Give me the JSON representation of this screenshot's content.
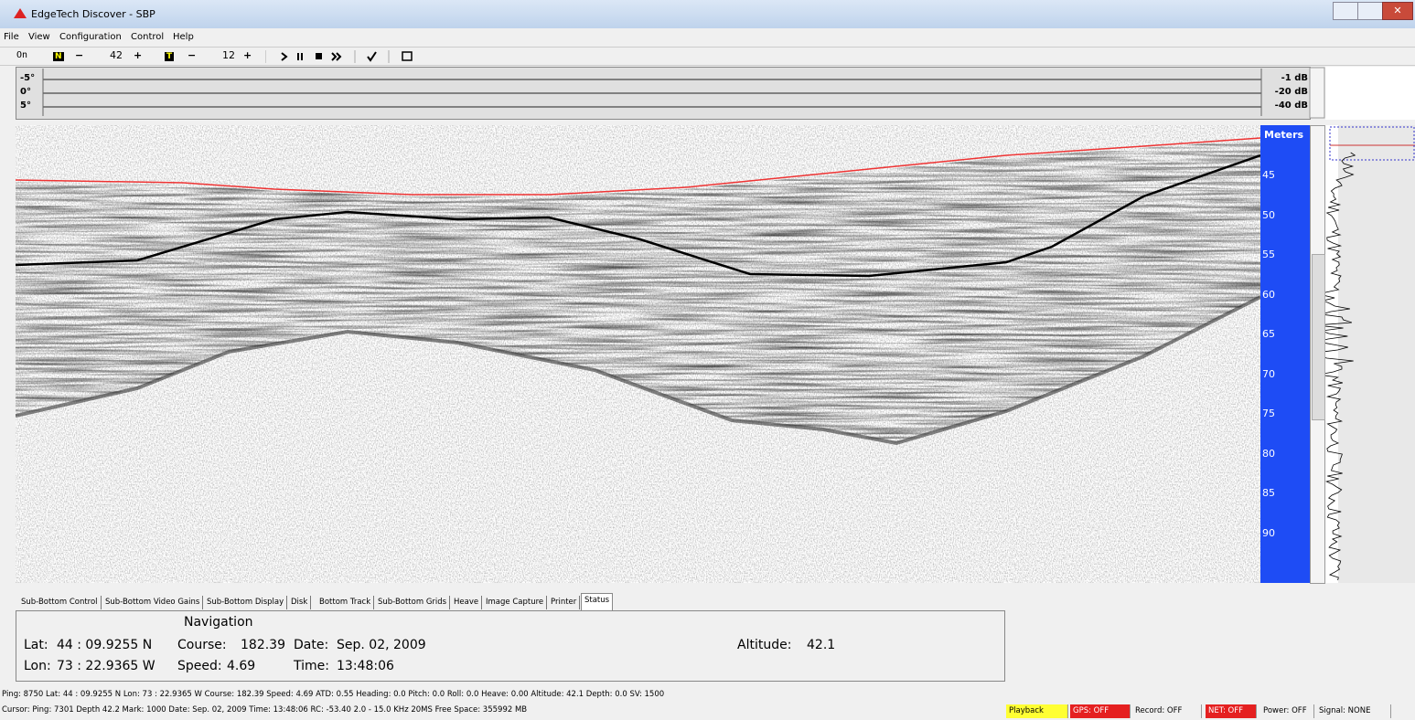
{
  "window": {
    "title": "EdgeTech Discover - SBP"
  },
  "menu": [
    "File",
    "View",
    "Configuration",
    "Control",
    "Help"
  ],
  "toolbar": {
    "on": "On",
    "n_label": "N",
    "n_minus": "−",
    "n_value": 42,
    "n_plus": "+",
    "t_label": "T",
    "t_minus": "−",
    "t_value": 12,
    "t_plus": "+"
  },
  "angle_scale": [
    "-5°",
    "0°",
    "5°"
  ],
  "db_scale": [
    "-1 dB",
    "-20 dB",
    "-40 dB"
  ],
  "depth_scale": {
    "label": "Meters",
    "ticks": [
      45,
      50,
      55,
      60,
      65,
      70,
      75,
      80,
      85,
      90
    ]
  },
  "tabs": [
    "Sub-Bottom Control",
    "Sub-Bottom Video Gains",
    "Sub-Bottom Display",
    "Disk",
    "Bottom Track",
    "Sub-Bottom Grids",
    "Heave",
    "Image Capture",
    "Printer",
    "Status"
  ],
  "navigation": {
    "title": "Navigation",
    "lat_label": "Lat:",
    "lat": "44 : 09.9255 N",
    "course_label": "Course:",
    "course": 182.39,
    "date_label": "Date:",
    "date": "Sep. 02, 2009",
    "altitude_label": "Altitude:",
    "altitude": 42.1,
    "lon_label": "Lon:",
    "lon": "73 : 22.9365 W",
    "speed_label": "Speed:",
    "speed": 4.69,
    "time_label": "Time:",
    "time": "13:48:06"
  },
  "status_lines": [
    "Ping:   8750  Lat:  44 : 09.9255 N  Lon:  73 : 22.9365 W  Course: 182.39  Speed: 4.69  ATD: 0.55  Heading: 0.0  Pitch: 0.0  Roll: 0.0  Heave: 0.00  Altitude: 42.1  Depth: 0.0    SV: 1500",
    "Cursor: Ping: 7301 Depth 42.2   Mark: 1000   Date: Sep. 02, 2009   Time: 13:48:06   RC: -53.40   2.0 - 15.0 KHz  20MS       Free Space: 355992 MB"
  ],
  "indicators": [
    "Playback",
    "GPS: OFF",
    "Record: OFF",
    "NET: OFF",
    "Power: OFF",
    "Signal: NONE"
  ]
}
